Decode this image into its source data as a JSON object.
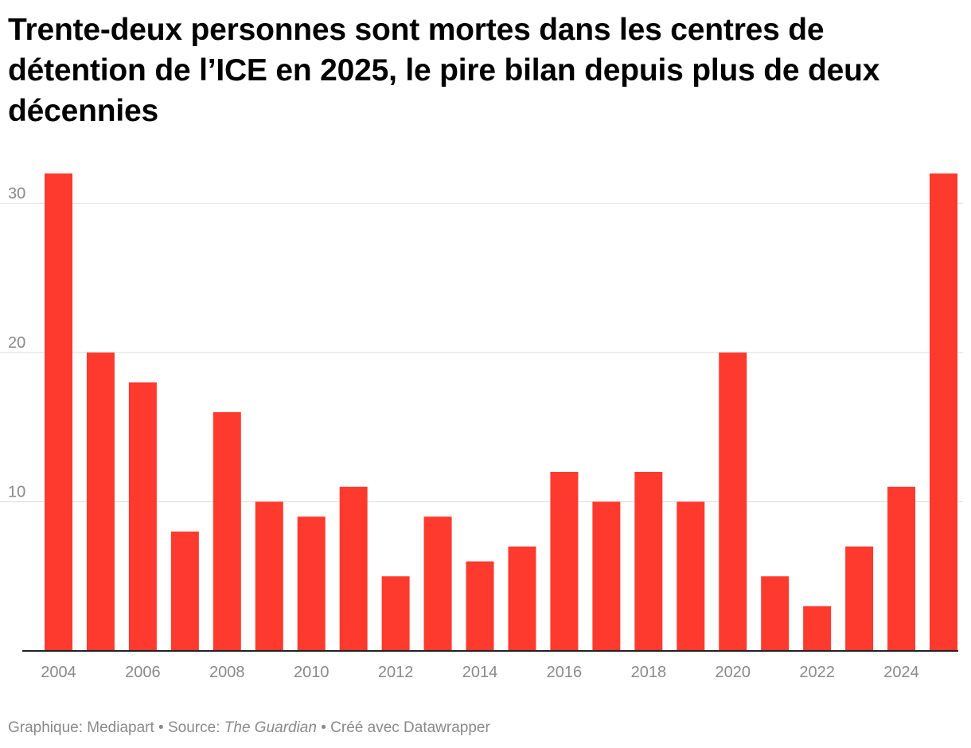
{
  "title": "Trente-deux personnes sont mortes dans les centres de détention de l’ICE en 2025, le pire bilan depuis plus de deux décennies",
  "footer": {
    "credit": "Graphique: Mediapart",
    "separator1": " • ",
    "source_prefix": "Source: ",
    "source_name": "The Guardian",
    "separator2": " • ",
    "tool": "Créé avec Datawrapper"
  },
  "colors": {
    "bar": "#fe3a2f",
    "grid": "#e2e2e2",
    "axis": "#222222",
    "label": "#8a8a8a"
  },
  "chart_data": {
    "type": "bar",
    "categories": [
      "2004",
      "2005",
      "2006",
      "2007",
      "2008",
      "2009",
      "2010",
      "2011",
      "2012",
      "2013",
      "2014",
      "2015",
      "2016",
      "2017",
      "2018",
      "2019",
      "2020",
      "2021",
      "2022",
      "2023",
      "2024",
      "2025"
    ],
    "values": [
      32,
      20,
      18,
      8,
      16,
      10,
      9,
      11,
      5,
      9,
      6,
      7,
      12,
      10,
      12,
      10,
      20,
      5,
      3,
      7,
      11,
      32
    ],
    "x_tick_labels": [
      "2004",
      "2006",
      "2008",
      "2010",
      "2012",
      "2014",
      "2016",
      "2018",
      "2020",
      "2022",
      "2024"
    ],
    "y_ticks": [
      10,
      20,
      30
    ],
    "ylim": [
      0,
      32
    ],
    "grid": true,
    "legend": "none",
    "xlabel": "",
    "ylabel": ""
  }
}
